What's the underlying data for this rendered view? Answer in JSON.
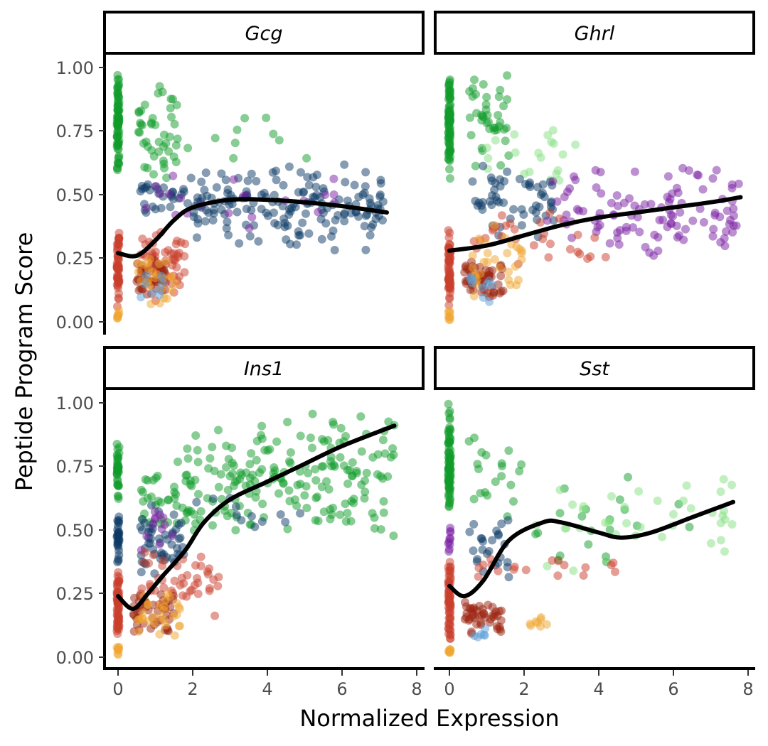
{
  "chart_data": {
    "type": "scatter",
    "xlabel": "Normalized Expression",
    "ylabel": "Peptide Program Score",
    "xlim": [
      -0.4,
      8.2
    ],
    "ylim": [
      -0.05,
      1.05
    ],
    "x_ticks": [
      0,
      2,
      4,
      6,
      8
    ],
    "y_ticks": [
      0.0,
      0.25,
      0.5,
      0.75,
      1.0
    ],
    "y_tick_labels": [
      "0.00",
      "0.25",
      "0.50",
      "0.75",
      "1.00"
    ],
    "facets": [
      "Gcg",
      "Ghrl",
      "Ins1",
      "Sst"
    ],
    "point_colors": {
      "green": "#0f9b2a",
      "light_green": "#86df82",
      "navy": "#0b3a66",
      "blue": "#5b9fd8",
      "purple": "#7a1fa2",
      "red": "#c93d2c",
      "dark_red": "#9c2310",
      "orange": "#f0a630"
    },
    "smooth_color": "#000000",
    "panels": [
      {
        "gene": "Gcg",
        "trend": [
          [
            0,
            0.27
          ],
          [
            0.5,
            0.26
          ],
          [
            1.0,
            0.32
          ],
          [
            1.5,
            0.4
          ],
          [
            2.0,
            0.45
          ],
          [
            3.0,
            0.48
          ],
          [
            4.0,
            0.48
          ],
          [
            5.0,
            0.47
          ],
          [
            6.0,
            0.455
          ],
          [
            7.2,
            0.43
          ]
        ],
        "clusters": [
          {
            "color": "green",
            "n": 80,
            "x": [
              0,
              0
            ],
            "y": [
              0.55,
              1.0
            ]
          },
          {
            "color": "green",
            "n": 45,
            "x": [
              0.5,
              1.6
            ],
            "y": [
              0.55,
              0.95
            ]
          },
          {
            "color": "green",
            "n": 10,
            "x": [
              1.5,
              5.2
            ],
            "y": [
              0.55,
              0.86
            ]
          },
          {
            "color": "navy",
            "n": 170,
            "x": [
              2.0,
              7.2
            ],
            "y": [
              0.28,
              0.63
            ]
          },
          {
            "color": "navy",
            "n": 30,
            "x": [
              0.6,
              2.0
            ],
            "y": [
              0.4,
              0.58
            ]
          },
          {
            "color": "purple",
            "n": 22,
            "x": [
              0.6,
              6.0
            ],
            "y": [
              0.35,
              0.6
            ]
          },
          {
            "color": "red",
            "n": 60,
            "x": [
              0,
              0
            ],
            "y": [
              0.05,
              0.4
            ]
          },
          {
            "color": "red",
            "n": 60,
            "x": [
              0.6,
              1.8
            ],
            "y": [
              0.08,
              0.38
            ]
          },
          {
            "color": "dark_red",
            "n": 40,
            "x": [
              0.5,
              1.3
            ],
            "y": [
              0.1,
              0.25
            ]
          },
          {
            "color": "orange",
            "n": 25,
            "x": [
              0.5,
              1.6
            ],
            "y": [
              0.04,
              0.3
            ]
          },
          {
            "color": "orange",
            "n": 8,
            "x": [
              0,
              0
            ],
            "y": [
              0.0,
              0.05
            ]
          },
          {
            "color": "blue",
            "n": 8,
            "x": [
              0.6,
              1.2
            ],
            "y": [
              0.05,
              0.2
            ]
          }
        ]
      },
      {
        "gene": "Ghrl",
        "trend": [
          [
            0,
            0.28
          ],
          [
            1.0,
            0.3
          ],
          [
            2.0,
            0.34
          ],
          [
            3.0,
            0.38
          ],
          [
            4.0,
            0.41
          ],
          [
            5.0,
            0.43
          ],
          [
            6.0,
            0.45
          ],
          [
            7.0,
            0.47
          ],
          [
            7.8,
            0.49
          ]
        ],
        "clusters": [
          {
            "color": "green",
            "n": 80,
            "x": [
              0,
              0
            ],
            "y": [
              0.55,
              1.0
            ]
          },
          {
            "color": "green",
            "n": 40,
            "x": [
              0.5,
              1.6
            ],
            "y": [
              0.6,
              1.0
            ]
          },
          {
            "color": "light_green",
            "n": 20,
            "x": [
              0.8,
              3.5
            ],
            "y": [
              0.5,
              0.8
            ]
          },
          {
            "color": "navy",
            "n": 55,
            "x": [
              0.6,
              2.8
            ],
            "y": [
              0.3,
              0.62
            ]
          },
          {
            "color": "purple",
            "n": 110,
            "x": [
              2.6,
              7.8
            ],
            "y": [
              0.22,
              0.62
            ]
          },
          {
            "color": "red",
            "n": 60,
            "x": [
              0,
              0
            ],
            "y": [
              0.05,
              0.4
            ]
          },
          {
            "color": "red",
            "n": 30,
            "x": [
              0.6,
              4.2
            ],
            "y": [
              0.2,
              0.45
            ]
          },
          {
            "color": "dark_red",
            "n": 55,
            "x": [
              0.4,
              1.5
            ],
            "y": [
              0.08,
              0.25
            ]
          },
          {
            "color": "orange",
            "n": 30,
            "x": [
              0.5,
              2.0
            ],
            "y": [
              0.08,
              0.4
            ]
          },
          {
            "color": "blue",
            "n": 10,
            "x": [
              0.5,
              1.2
            ],
            "y": [
              0.05,
              0.2
            ]
          },
          {
            "color": "orange",
            "n": 8,
            "x": [
              0,
              0
            ],
            "y": [
              0.0,
              0.05
            ]
          }
        ]
      },
      {
        "gene": "Ins1",
        "trend": [
          [
            0,
            0.24
          ],
          [
            0.4,
            0.19
          ],
          [
            0.8,
            0.25
          ],
          [
            1.2,
            0.32
          ],
          [
            1.8,
            0.42
          ],
          [
            2.3,
            0.53
          ],
          [
            3.0,
            0.62
          ],
          [
            4.0,
            0.69
          ],
          [
            5.0,
            0.76
          ],
          [
            6.0,
            0.83
          ],
          [
            7.4,
            0.91
          ]
        ],
        "clusters": [
          {
            "color": "green",
            "n": 40,
            "x": [
              0,
              0
            ],
            "y": [
              0.6,
              0.85
            ]
          },
          {
            "color": "green",
            "n": 190,
            "x": [
              1.8,
              7.4
            ],
            "y": [
              0.45,
              0.98
            ]
          },
          {
            "color": "green",
            "n": 35,
            "x": [
              0.6,
              2.0
            ],
            "y": [
              0.45,
              0.8
            ]
          },
          {
            "color": "navy",
            "n": 50,
            "x": [
              0.6,
              1.8
            ],
            "y": [
              0.3,
              0.62
            ]
          },
          {
            "color": "navy",
            "n": 12,
            "x": [
              2.0,
              5.0
            ],
            "y": [
              0.5,
              0.65
            ]
          },
          {
            "color": "purple",
            "n": 12,
            "x": [
              0.6,
              1.5
            ],
            "y": [
              0.4,
              0.6
            ]
          },
          {
            "color": "navy",
            "n": 30,
            "x": [
              0,
              0
            ],
            "y": [
              0.35,
              0.6
            ]
          },
          {
            "color": "red",
            "n": 60,
            "x": [
              0,
              0
            ],
            "y": [
              0.05,
              0.35
            ]
          },
          {
            "color": "red",
            "n": 45,
            "x": [
              0.6,
              2.8
            ],
            "y": [
              0.15,
              0.45
            ]
          },
          {
            "color": "dark_red",
            "n": 45,
            "x": [
              0.4,
              1.5
            ],
            "y": [
              0.08,
              0.28
            ]
          },
          {
            "color": "orange",
            "n": 30,
            "x": [
              0.5,
              1.7
            ],
            "y": [
              0.04,
              0.3
            ]
          },
          {
            "color": "orange",
            "n": 8,
            "x": [
              0,
              0
            ],
            "y": [
              0.0,
              0.05
            ]
          }
        ]
      },
      {
        "gene": "Sst",
        "trend": [
          [
            0,
            0.28
          ],
          [
            0.4,
            0.24
          ],
          [
            0.9,
            0.3
          ],
          [
            1.6,
            0.46
          ],
          [
            2.5,
            0.53
          ],
          [
            3.0,
            0.53
          ],
          [
            4.0,
            0.49
          ],
          [
            4.6,
            0.47
          ],
          [
            5.4,
            0.49
          ],
          [
            6.5,
            0.55
          ],
          [
            7.6,
            0.61
          ]
        ],
        "clusters": [
          {
            "color": "green",
            "n": 80,
            "x": [
              0,
              0
            ],
            "y": [
              0.55,
              1.0
            ]
          },
          {
            "color": "green",
            "n": 20,
            "x": [
              0.5,
              2.0
            ],
            "y": [
              0.5,
              0.9
            ]
          },
          {
            "color": "green",
            "n": 20,
            "x": [
              2.0,
              7.0
            ],
            "y": [
              0.3,
              0.75
            ]
          },
          {
            "color": "light_green",
            "n": 40,
            "x": [
              2.0,
              7.7
            ],
            "y": [
              0.3,
              0.75
            ]
          },
          {
            "color": "navy",
            "n": 25,
            "x": [
              0.5,
              1.6
            ],
            "y": [
              0.3,
              0.55
            ]
          },
          {
            "color": "purple",
            "n": 10,
            "x": [
              0,
              0
            ],
            "y": [
              0.4,
              0.55
            ]
          },
          {
            "color": "red",
            "n": 60,
            "x": [
              0,
              0
            ],
            "y": [
              0.05,
              0.4
            ]
          },
          {
            "color": "red",
            "n": 18,
            "x": [
              0.6,
              4.5
            ],
            "y": [
              0.28,
              0.42
            ]
          },
          {
            "color": "dark_red",
            "n": 45,
            "x": [
              0.4,
              1.4
            ],
            "y": [
              0.08,
              0.25
            ]
          },
          {
            "color": "orange",
            "n": 8,
            "x": [
              1.8,
              2.8
            ],
            "y": [
              0.1,
              0.16
            ]
          },
          {
            "color": "blue",
            "n": 6,
            "x": [
              0.6,
              1.0
            ],
            "y": [
              0.06,
              0.12
            ]
          },
          {
            "color": "orange",
            "n": 8,
            "x": [
              0,
              0
            ],
            "y": [
              0.0,
              0.05
            ]
          }
        ]
      }
    ]
  }
}
